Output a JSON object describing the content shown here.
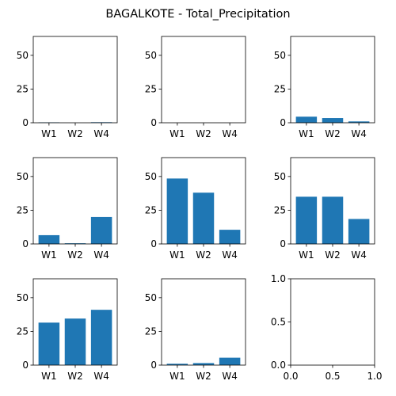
{
  "title": "BAGALKOTE - Total_Precipitation",
  "colors": {
    "bar": "#1f77b4"
  },
  "chart_data": [
    {
      "type": "bar",
      "categories": [
        "W1",
        "W2",
        "W4"
      ],
      "values": [
        0.3,
        0.0,
        0.4
      ],
      "ylim": [
        0,
        64
      ],
      "yticks": [
        "0",
        "25",
        "50"
      ]
    },
    {
      "type": "bar",
      "categories": [
        "W1",
        "W2",
        "W4"
      ],
      "values": [
        0.0,
        0.0,
        0.0
      ],
      "ylim": [
        0,
        64
      ],
      "yticks": [
        "0",
        "25",
        "50"
      ]
    },
    {
      "type": "bar",
      "categories": [
        "W1",
        "W2",
        "W4"
      ],
      "values": [
        4.5,
        3.5,
        1.0
      ],
      "ylim": [
        0,
        64
      ],
      "yticks": [
        "0",
        "25",
        "50"
      ]
    },
    {
      "type": "bar",
      "categories": [
        "W1",
        "W2",
        "W4"
      ],
      "values": [
        6.5,
        0.5,
        20.0
      ],
      "ylim": [
        0,
        64
      ],
      "yticks": [
        "0",
        "25",
        "50"
      ]
    },
    {
      "type": "bar",
      "categories": [
        "W1",
        "W2",
        "W4"
      ],
      "values": [
        48.5,
        38.0,
        10.5
      ],
      "ylim": [
        0,
        64
      ],
      "yticks": [
        "0",
        "25",
        "50"
      ]
    },
    {
      "type": "bar",
      "categories": [
        "W1",
        "W2",
        "W4"
      ],
      "values": [
        35.0,
        35.0,
        18.5
      ],
      "ylim": [
        0,
        64
      ],
      "yticks": [
        "0",
        "25",
        "50"
      ]
    },
    {
      "type": "bar",
      "categories": [
        "W1",
        "W2",
        "W4"
      ],
      "values": [
        31.5,
        34.5,
        41.0
      ],
      "ylim": [
        0,
        64
      ],
      "yticks": [
        "0",
        "25",
        "50"
      ]
    },
    {
      "type": "bar",
      "categories": [
        "W1",
        "W2",
        "W4"
      ],
      "values": [
        1.0,
        1.5,
        5.5
      ],
      "ylim": [
        0,
        64
      ],
      "yticks": [
        "0",
        "25",
        "50"
      ]
    },
    {
      "type": "empty",
      "xlim": [
        0,
        1
      ],
      "ylim": [
        0,
        1
      ],
      "xticks": [
        "0.0",
        "0.5",
        "1.0"
      ],
      "yticks": [
        "0.0",
        "0.5",
        "1.0"
      ]
    }
  ]
}
